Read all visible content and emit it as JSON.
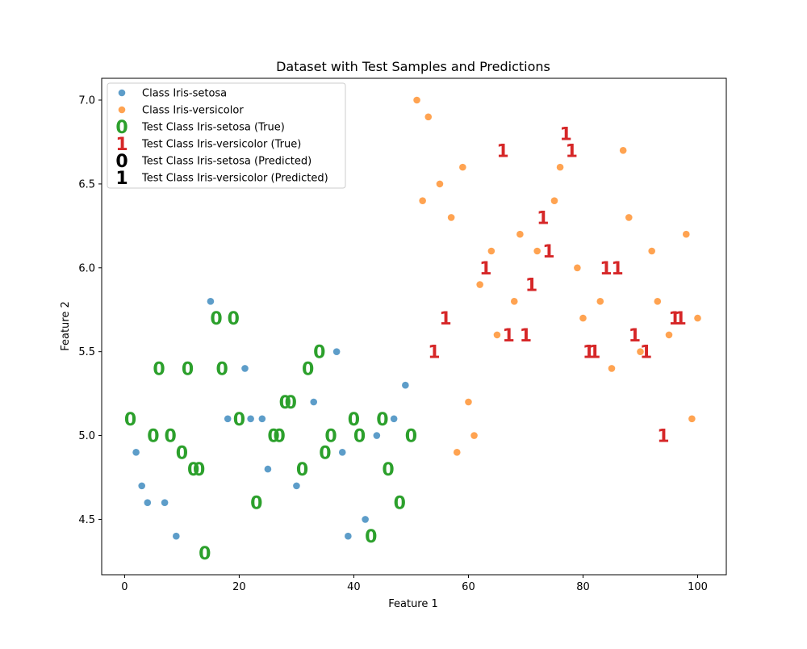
{
  "colors": {
    "setosa": "#1f77b4",
    "versicolor": "#ff7f0e",
    "test_true_setosa": "#2ca02c",
    "test_true_versicolor": "#d62728",
    "predicted": "#000000"
  },
  "chart_data": {
    "type": "scatter",
    "title": "Dataset with Test Samples and Predictions",
    "xlabel": "Feature 1",
    "ylabel": "Feature 2",
    "xlim": [
      -4,
      105
    ],
    "ylim": [
      4.17,
      7.13
    ],
    "xticks": [
      0,
      20,
      40,
      60,
      80,
      100
    ],
    "xtick_labels": [
      "0",
      "20",
      "40",
      "60",
      "80",
      "100"
    ],
    "yticks": [
      4.5,
      5.0,
      5.5,
      6.0,
      6.5,
      7.0
    ],
    "ytick_labels": [
      "4.5",
      "5.0",
      "5.5",
      "6.0",
      "6.5",
      "7.0"
    ],
    "grid": false,
    "legend_position": "top-left",
    "legend": [
      {
        "label": "Class Iris-setosa",
        "marker": "circle",
        "color": "#1f77b4"
      },
      {
        "label": "Class Iris-versicolor",
        "marker": "circle",
        "color": "#ff7f0e"
      },
      {
        "label": "Test Class Iris-setosa (True)",
        "marker": "0",
        "color": "#2ca02c"
      },
      {
        "label": "Test Class Iris-versicolor (True)",
        "marker": "1",
        "color": "#d62728"
      },
      {
        "label": "Test Class Iris-setosa (Predicted)",
        "marker": "0",
        "color": "#000000"
      },
      {
        "label": "Test Class Iris-versicolor (Predicted)",
        "marker": "1",
        "color": "#000000"
      }
    ],
    "series": [
      {
        "name": "Class Iris-setosa",
        "kind": "point",
        "color": "#1f77b4",
        "points": [
          [
            2,
            4.9
          ],
          [
            3,
            4.7
          ],
          [
            4,
            4.6
          ],
          [
            7,
            4.6
          ],
          [
            9,
            4.4
          ],
          [
            15,
            5.8
          ],
          [
            18,
            5.1
          ],
          [
            21,
            5.4
          ],
          [
            22,
            5.1
          ],
          [
            24,
            5.1
          ],
          [
            25,
            4.8
          ],
          [
            30,
            4.7
          ],
          [
            33,
            5.2
          ],
          [
            37,
            5.5
          ],
          [
            38,
            4.9
          ],
          [
            39,
            4.4
          ],
          [
            42,
            4.5
          ],
          [
            44,
            5.0
          ],
          [
            47,
            5.1
          ],
          [
            49,
            5.3
          ]
        ]
      },
      {
        "name": "Class Iris-versicolor",
        "kind": "point",
        "color": "#ff7f0e",
        "points": [
          [
            51,
            7.0
          ],
          [
            52,
            6.4
          ],
          [
            53,
            6.9
          ],
          [
            55,
            6.5
          ],
          [
            57,
            6.3
          ],
          [
            58,
            4.9
          ],
          [
            59,
            6.6
          ],
          [
            60,
            5.2
          ],
          [
            61,
            5.0
          ],
          [
            62,
            5.9
          ],
          [
            64,
            6.1
          ],
          [
            65,
            5.6
          ],
          [
            68,
            5.8
          ],
          [
            69,
            6.2
          ],
          [
            72,
            6.1
          ],
          [
            75,
            6.4
          ],
          [
            76,
            6.6
          ],
          [
            79,
            6.0
          ],
          [
            80,
            5.7
          ],
          [
            83,
            5.8
          ],
          [
            85,
            5.4
          ],
          [
            87,
            6.7
          ],
          [
            88,
            6.3
          ],
          [
            90,
            5.5
          ],
          [
            92,
            6.1
          ],
          [
            93,
            5.8
          ],
          [
            95,
            5.6
          ],
          [
            98,
            6.2
          ],
          [
            99,
            5.1
          ],
          [
            100,
            5.7
          ]
        ]
      },
      {
        "name": "Test Class Iris-setosa (True)",
        "kind": "glyph",
        "glyph": "0",
        "color": "#2ca02c",
        "points": [
          [
            1,
            5.1
          ],
          [
            5,
            5.0
          ],
          [
            6,
            5.4
          ],
          [
            8,
            5.0
          ],
          [
            10,
            4.9
          ],
          [
            11,
            5.4
          ],
          [
            12,
            4.8
          ],
          [
            13,
            4.8
          ],
          [
            14,
            4.3
          ],
          [
            16,
            5.7
          ],
          [
            17,
            5.4
          ],
          [
            19,
            5.7
          ],
          [
            20,
            5.1
          ],
          [
            23,
            4.6
          ],
          [
            26,
            5.0
          ],
          [
            27,
            5.0
          ],
          [
            28,
            5.2
          ],
          [
            29,
            5.2
          ],
          [
            31,
            4.8
          ],
          [
            32,
            5.4
          ],
          [
            34,
            5.5
          ],
          [
            35,
            4.9
          ],
          [
            36,
            5.0
          ],
          [
            40,
            5.1
          ],
          [
            41,
            5.0
          ],
          [
            43,
            4.4
          ],
          [
            45,
            5.1
          ],
          [
            46,
            4.8
          ],
          [
            48,
            4.6
          ],
          [
            50,
            5.0
          ]
        ]
      },
      {
        "name": "Test Class Iris-versicolor (True)",
        "kind": "glyph",
        "glyph": "1",
        "color": "#d62728",
        "points": [
          [
            54,
            5.5
          ],
          [
            56,
            5.7
          ],
          [
            63,
            6.0
          ],
          [
            66,
            6.7
          ],
          [
            67,
            5.6
          ],
          [
            70,
            5.6
          ],
          [
            71,
            5.9
          ],
          [
            73,
            6.3
          ],
          [
            74,
            6.1
          ],
          [
            77,
            6.8
          ],
          [
            78,
            6.7
          ],
          [
            81,
            5.5
          ],
          [
            82,
            5.5
          ],
          [
            84,
            6.0
          ],
          [
            86,
            6.0
          ],
          [
            89,
            5.6
          ],
          [
            91,
            5.5
          ],
          [
            94,
            5.0
          ],
          [
            96,
            5.7
          ],
          [
            97,
            5.7
          ]
        ]
      }
    ]
  }
}
